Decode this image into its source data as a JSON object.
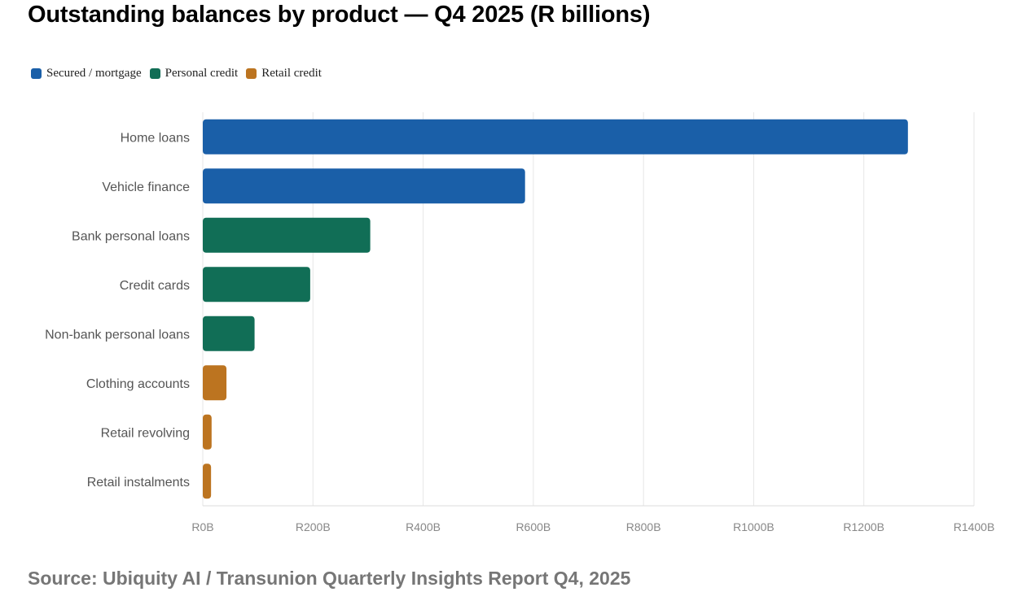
{
  "title": "Outstanding balances by product — Q4 2025 (R billions)",
  "source": "Source: Ubiquity AI / Transunion Quarterly Insights Report Q4, 2025",
  "legend": [
    {
      "label": "Secured / mortgage",
      "color": "#1a5fa8"
    },
    {
      "label": "Personal credit",
      "color": "#116e56"
    },
    {
      "label": "Retail credit",
      "color": "#bc7420"
    }
  ],
  "chart_data": {
    "type": "bar",
    "orientation": "horizontal",
    "categories": [
      "Home loans",
      "Vehicle finance",
      "Bank personal loans",
      "Credit cards",
      "Non-bank personal loans",
      "Clothing accounts",
      "Retail revolving",
      "Retail instalments"
    ],
    "values": [
      1280,
      585,
      304,
      195,
      94,
      43,
      16,
      15
    ],
    "groups": [
      "Secured / mortgage",
      "Secured / mortgage",
      "Personal credit",
      "Personal credit",
      "Personal credit",
      "Retail credit",
      "Retail credit",
      "Retail credit"
    ],
    "xlim": [
      0,
      1400
    ],
    "xticks": [
      0,
      200,
      400,
      600,
      800,
      1000,
      1200,
      1400
    ],
    "xtick_labels": [
      "R0B",
      "R200B",
      "R400B",
      "R600B",
      "R800B",
      "R1000B",
      "R1200B",
      "R1400B"
    ],
    "grid": true,
    "legend_position": "top-left"
  }
}
